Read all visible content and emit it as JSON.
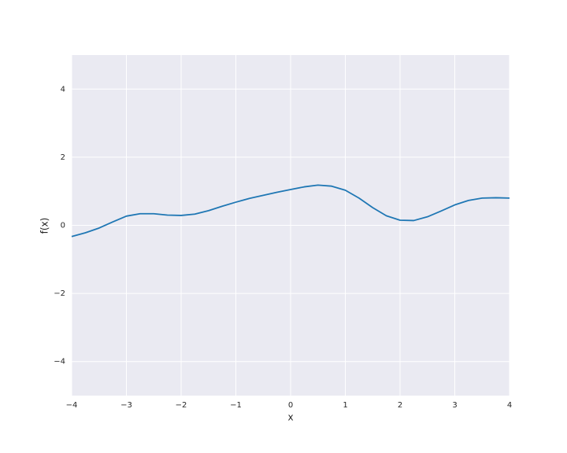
{
  "chart_data": {
    "type": "line",
    "x": [
      -4,
      -3.75,
      -3.5,
      -3.25,
      -3,
      -2.75,
      -2.5,
      -2.25,
      -2,
      -1.75,
      -1.5,
      -1.25,
      -1,
      -0.75,
      -0.5,
      -0.25,
      0,
      0.25,
      0.5,
      0.75,
      1,
      1.25,
      1.5,
      1.75,
      2,
      2.25,
      2.5,
      2.75,
      3,
      3.25,
      3.5,
      3.75,
      4
    ],
    "values": [
      -0.33,
      -0.22,
      -0.08,
      0.1,
      0.27,
      0.34,
      0.34,
      0.3,
      0.29,
      0.33,
      0.43,
      0.56,
      0.68,
      0.79,
      0.88,
      0.97,
      1.05,
      1.13,
      1.18,
      1.15,
      1.03,
      0.8,
      0.52,
      0.28,
      0.15,
      0.14,
      0.25,
      0.42,
      0.6,
      0.73,
      0.8,
      0.81,
      0.8
    ],
    "color": "#1f77b4",
    "xlabel": "x",
    "ylabel": "f(x)",
    "xlim": [
      -4,
      4
    ],
    "xticks": [
      {
        "value": -4,
        "label": "−4"
      },
      {
        "value": -3,
        "label": "−3"
      },
      {
        "value": -2,
        "label": "−2"
      },
      {
        "value": -1,
        "label": "−1"
      },
      0,
      1,
      2,
      3,
      4
    ],
    "ylim": [
      -5,
      5
    ],
    "yticks": [
      {
        "value": -4,
        "label": "−4"
      },
      {
        "value": -2,
        "label": "−2"
      },
      0,
      2,
      4
    ],
    "grid": true
  }
}
